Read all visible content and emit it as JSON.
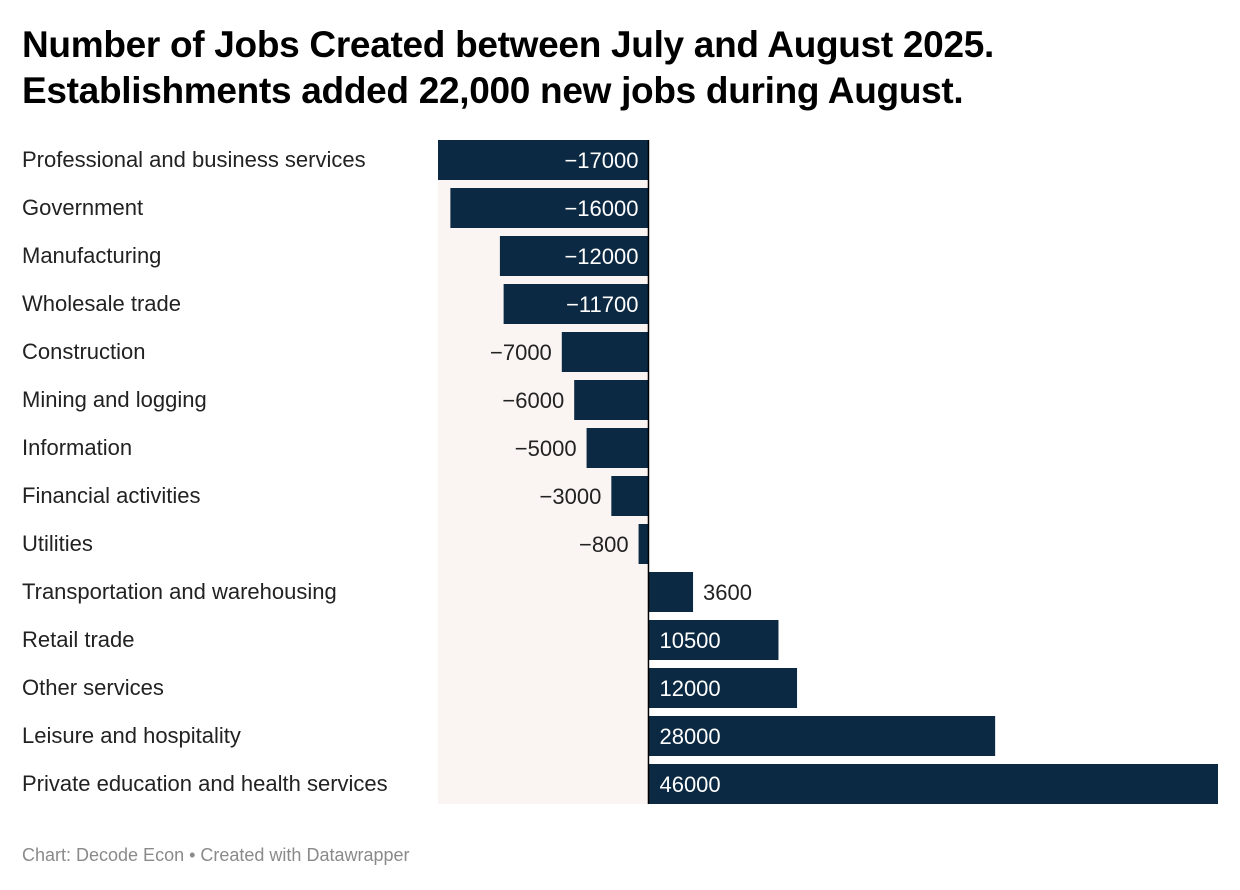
{
  "chart_data": {
    "type": "bar",
    "orientation": "horizontal",
    "title": [
      "Number of Jobs Created between July and August 2025.",
      "Establishments added 22,000 new jobs during August."
    ],
    "categories": [
      "Professional and business services",
      "Government",
      "Manufacturing",
      "Wholesale trade",
      "Construction",
      "Mining and logging",
      "Information",
      "Financial activities",
      "Utilities",
      "Transportation and warehousing",
      "Retail trade",
      "Other services",
      "Leisure and hospitality",
      "Private education and health services"
    ],
    "values": [
      -17000,
      -16000,
      -12000,
      -11700,
      -7000,
      -6000,
      -5000,
      -3000,
      -800,
      3600,
      10500,
      12000,
      28000,
      46000
    ],
    "value_labels": [
      "−17000",
      "−16000",
      "−12000",
      "−11700",
      "−7000",
      "−6000",
      "−5000",
      "−3000",
      "−800",
      "3600",
      "10500",
      "12000",
      "28000",
      "46000"
    ],
    "xlim": [
      -17000,
      46000
    ],
    "grid": false,
    "colors": {
      "bar": "#0b2942",
      "negative_bg": "#faf4f3",
      "axis": "#000000"
    }
  },
  "footer": "Chart: Decode Econ • Created with Datawrapper"
}
